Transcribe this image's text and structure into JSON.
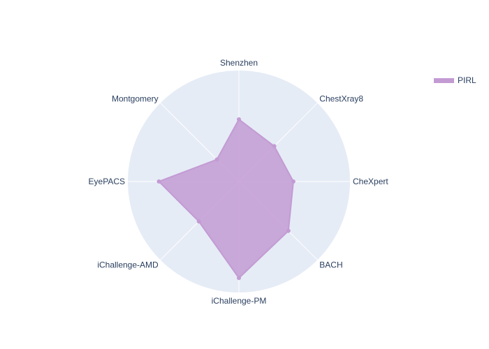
{
  "chart_data": {
    "type": "radar",
    "categories": [
      "Shenzhen",
      "ChestXray8",
      "CheXpert",
      "BACH",
      "iChallenge-PM",
      "iChallenge-AMD",
      "EyePACS",
      "Montgomery"
    ],
    "series": [
      {
        "name": "PIRL",
        "values": [
          0.56,
          0.45,
          0.49,
          0.63,
          0.87,
          0.51,
          0.72,
          0.28
        ]
      }
    ],
    "rlim": [
      0,
      1
    ],
    "grid": true,
    "legend": "top-right",
    "colors": {
      "polar_bg": "#e5ecf6",
      "grid": "#ffffff",
      "series_fill": "#c39bd3",
      "series_line": "#c39bd3",
      "text": "#2a3f5f"
    }
  }
}
